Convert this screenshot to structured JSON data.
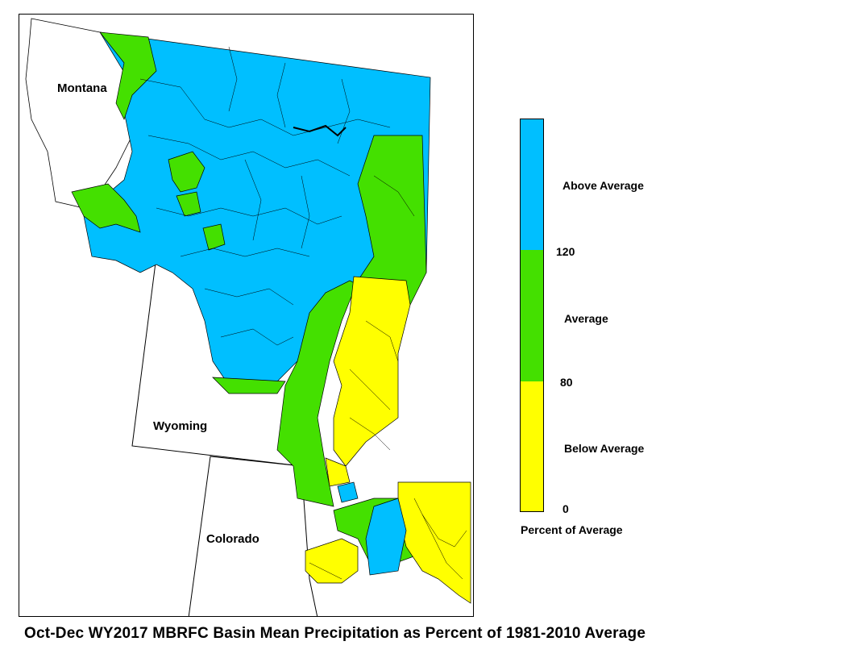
{
  "map": {
    "states": [
      "Montana",
      "Wyoming",
      "Colorado"
    ],
    "colors": {
      "above": "#00BFFF",
      "average": "#44E000",
      "below": "#FFFF00",
      "border": "#000000"
    }
  },
  "legend": {
    "labels": {
      "above": "Above Average",
      "average": "Average",
      "below": "Below Average"
    },
    "ticks": {
      "high": "120",
      "mid": "80",
      "low": "0"
    },
    "title": "Percent of Average",
    "categories": [
      {
        "name": "Above Average",
        "min": 120,
        "color": "#00BFFF"
      },
      {
        "name": "Average",
        "min": 80,
        "max": 120,
        "color": "#44E000"
      },
      {
        "name": "Below Average",
        "min": 0,
        "max": 80,
        "color": "#FFFF00"
      }
    ]
  },
  "caption": "Oct-Dec WY2017 MBRFC Basin Mean Precipitation as Percent of 1981-2010 Average"
}
